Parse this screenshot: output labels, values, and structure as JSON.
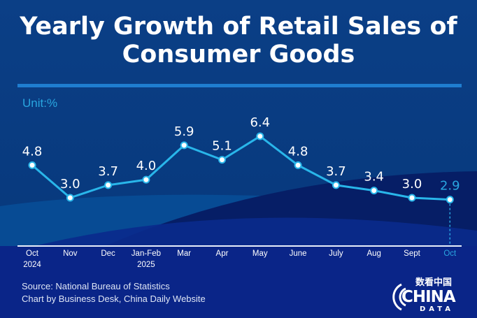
{
  "title_lines": [
    "Yearly Growth of Retail Sales of",
    "Consumer Goods"
  ],
  "unit": "Unit:%",
  "chart_data": {
    "type": "line",
    "title": "Yearly Growth of Retail Sales of Consumer Goods",
    "ylabel": "Unit:%",
    "categories": [
      [
        "Oct",
        "2024"
      ],
      [
        "Nov"
      ],
      [
        "Dec"
      ],
      [
        "Jan-Feb",
        "2025"
      ],
      [
        "Mar"
      ],
      [
        "Apr"
      ],
      [
        "May"
      ],
      [
        "June"
      ],
      [
        "July"
      ],
      [
        "Aug"
      ],
      [
        "Sept"
      ],
      [
        "Oct"
      ]
    ],
    "values": [
      4.8,
      3.0,
      3.7,
      4.0,
      5.9,
      5.1,
      6.4,
      4.8,
      3.7,
      3.4,
      3.0,
      2.9
    ],
    "data_labels": [
      "4.8",
      "3.0",
      "3.7",
      "4.0",
      "5.9",
      "5.1",
      "6.4",
      "4.8",
      "3.7",
      "3.4",
      "3.0",
      "2.9"
    ],
    "highlight_index": 11,
    "grid": false,
    "colors": {
      "line": "#29b6ea",
      "label": "#ffffff",
      "highlight": "#29a6e0"
    }
  },
  "source": "Source: National Bureau of Statistics",
  "credit": "Chart by Business Desk, China Daily Website",
  "logo": {
    "cn": "数看中国",
    "main": "CHINA",
    "sub": "DATA"
  }
}
